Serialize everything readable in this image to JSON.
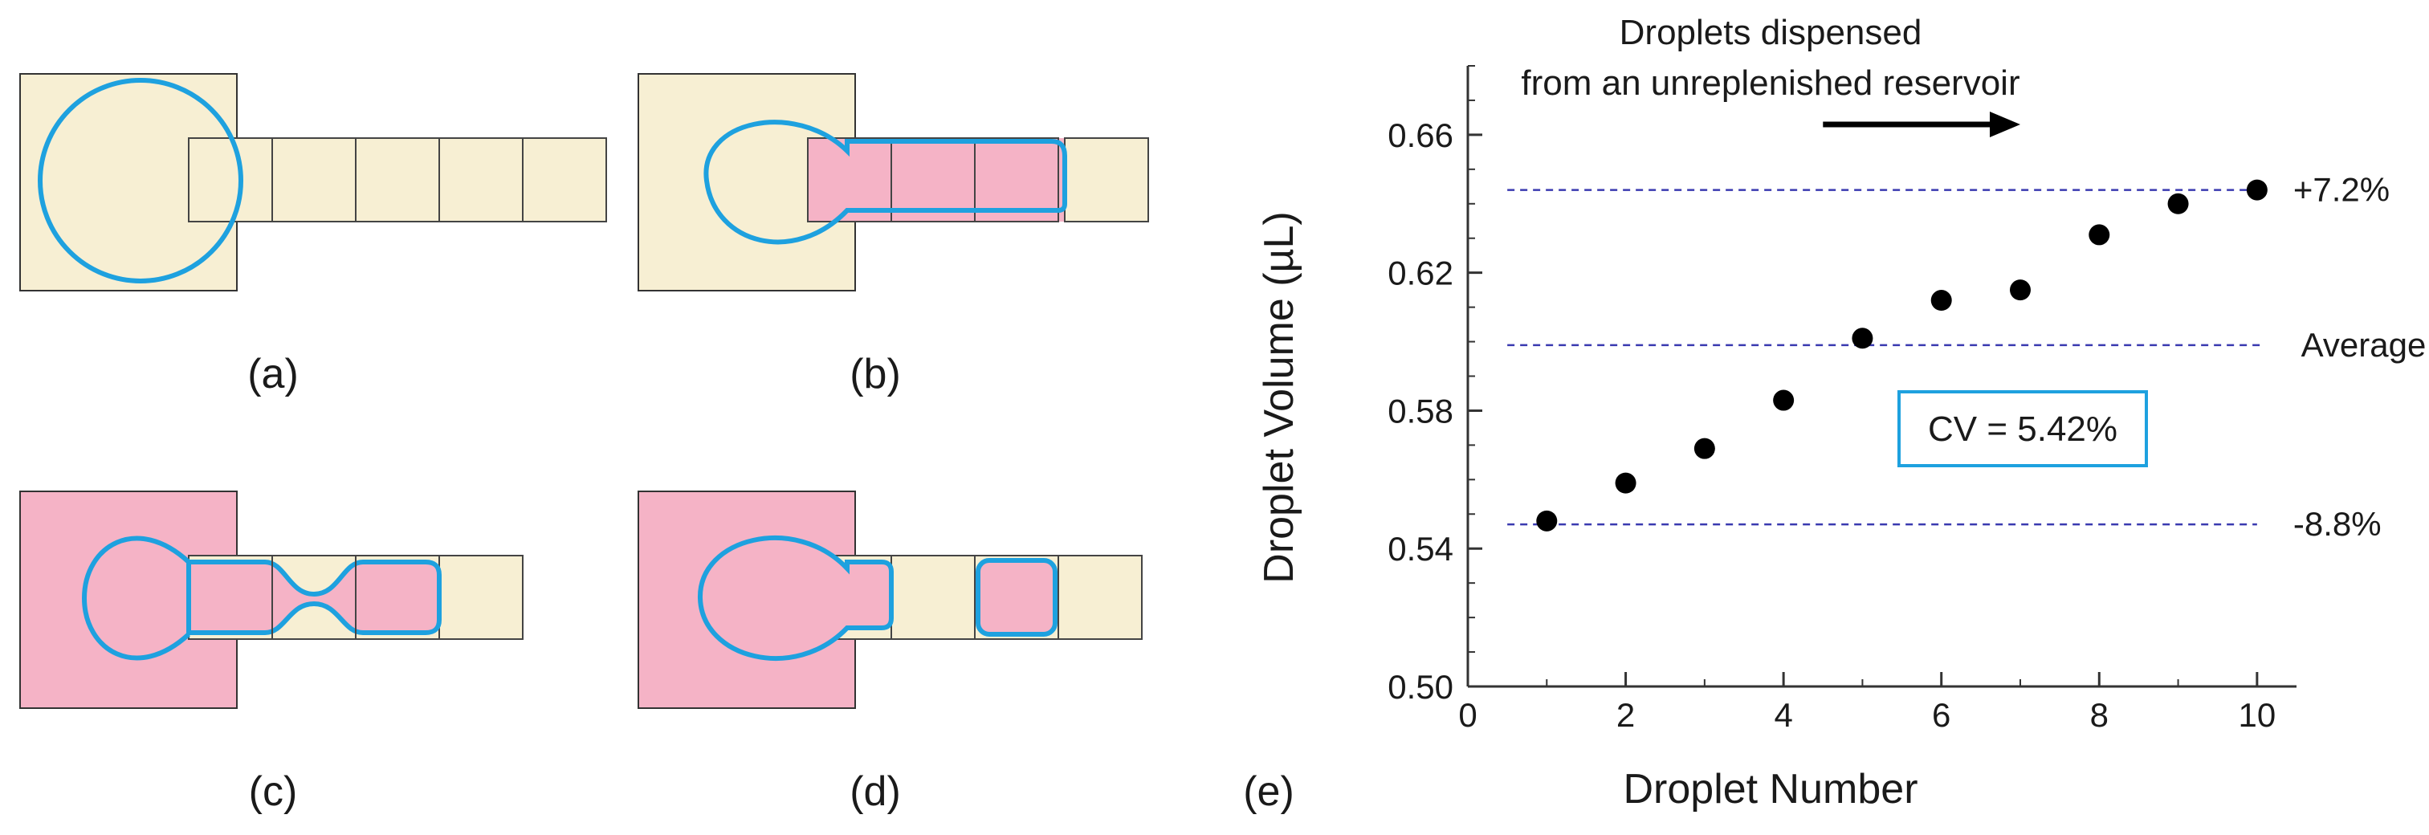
{
  "colors": {
    "pad": "#f7efd3",
    "liquid": "#f5b3c6",
    "droplet_outline": "#1ea1df",
    "pad_border": "#444444",
    "ref_line": "#3a3ab0",
    "marker": "#000000",
    "cv_box_border": "#1ea1df"
  },
  "panels": {
    "a": {
      "label": "(a)"
    },
    "b": {
      "label": "(b)"
    },
    "c": {
      "label": "(c)"
    },
    "d": {
      "label": "(d)"
    },
    "e": {
      "label": "(e)"
    }
  },
  "chart_data": {
    "type": "scatter",
    "title": "",
    "xlabel": "Droplet Number",
    "ylabel": "Droplet Volume (µL)",
    "xlim": [
      0,
      10.5
    ],
    "ylim": [
      0.5,
      0.68
    ],
    "x_ticks": [
      0,
      2,
      4,
      6,
      8,
      10
    ],
    "x_tick_labels": [
      "0",
      "2",
      "4",
      "6",
      "8",
      "10"
    ],
    "y_ticks": [
      0.5,
      0.54,
      0.58,
      0.62,
      0.66
    ],
    "y_tick_labels": [
      "0.50",
      "0.54",
      "0.58",
      "0.62",
      "0.66"
    ],
    "series": [
      {
        "name": "Droplets",
        "x": [
          1,
          2,
          3,
          4,
          5,
          6,
          7,
          8,
          9,
          10
        ],
        "y": [
          0.548,
          0.559,
          0.569,
          0.583,
          0.601,
          0.612,
          0.615,
          0.631,
          0.64,
          0.644
        ]
      }
    ],
    "reference_lines": [
      {
        "label": "+7.2%",
        "y": 0.644,
        "x_from": 0.5,
        "x_to": 10.0
      },
      {
        "label": "Average",
        "y": 0.599,
        "x_from": 0.5,
        "x_to": 10.1
      },
      {
        "label": "-8.8%",
        "y": 0.547,
        "x_from": 0.5,
        "x_to": 10.0
      }
    ],
    "annotations": [
      {
        "text": "Droplets dispensed",
        "role": "heading-line-1"
      },
      {
        "text": "from an unreplenished reservoir",
        "role": "heading-line-2"
      },
      {
        "text": "CV = 5.42%",
        "role": "cv-box"
      }
    ],
    "arrow": {
      "direction": "right",
      "x_from": 4.5,
      "x_to": 7.0,
      "y": 0.663
    }
  }
}
